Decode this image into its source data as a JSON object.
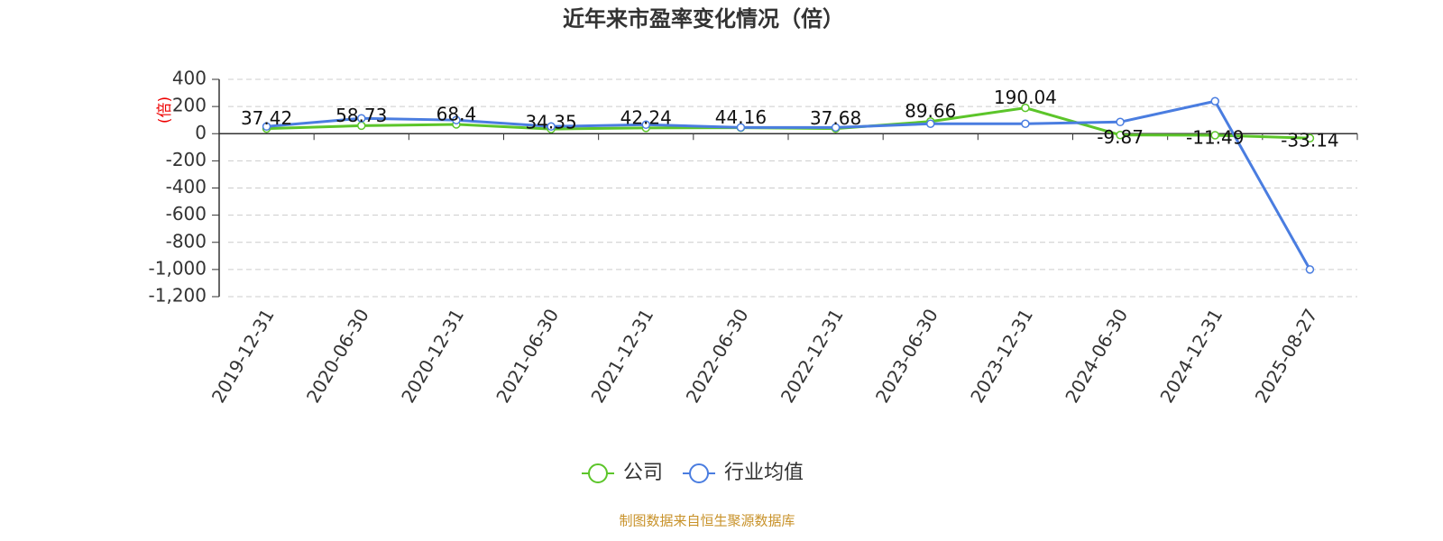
{
  "chart_data": {
    "type": "line",
    "title": "近年来市盈率变化情况（倍）",
    "y_axis_label": "(倍)",
    "categories": [
      "2019-12-31",
      "2020-06-30",
      "2020-12-31",
      "2021-06-30",
      "2021-12-31",
      "2022-06-30",
      "2022-12-31",
      "2023-06-30",
      "2023-12-31",
      "2024-06-30",
      "2024-12-31",
      "2025-08-27"
    ],
    "series": [
      {
        "name": "公司",
        "color": "#5cc52a",
        "values": [
          37.42,
          58.73,
          68.4,
          34.35,
          42.24,
          44.16,
          37.68,
          89.66,
          190.04,
          -9.87,
          -11.49,
          -33.14
        ]
      },
      {
        "name": "行业均值",
        "color": "#4a7de0",
        "values": [
          53,
          113,
          100,
          53,
          66,
          46,
          46,
          73,
          73,
          86,
          239,
          -1000
        ]
      }
    ],
    "ylim": [
      -1200,
      400
    ],
    "yticks": [
      {
        "value": -1200,
        "label": "-1,200"
      },
      {
        "value": -1000,
        "label": "-1,000"
      },
      -800,
      -600,
      -400,
      -200,
      0,
      200,
      400
    ],
    "grid": true,
    "legend": "bottom",
    "source": "制图数据来自恒生聚源数据库"
  }
}
